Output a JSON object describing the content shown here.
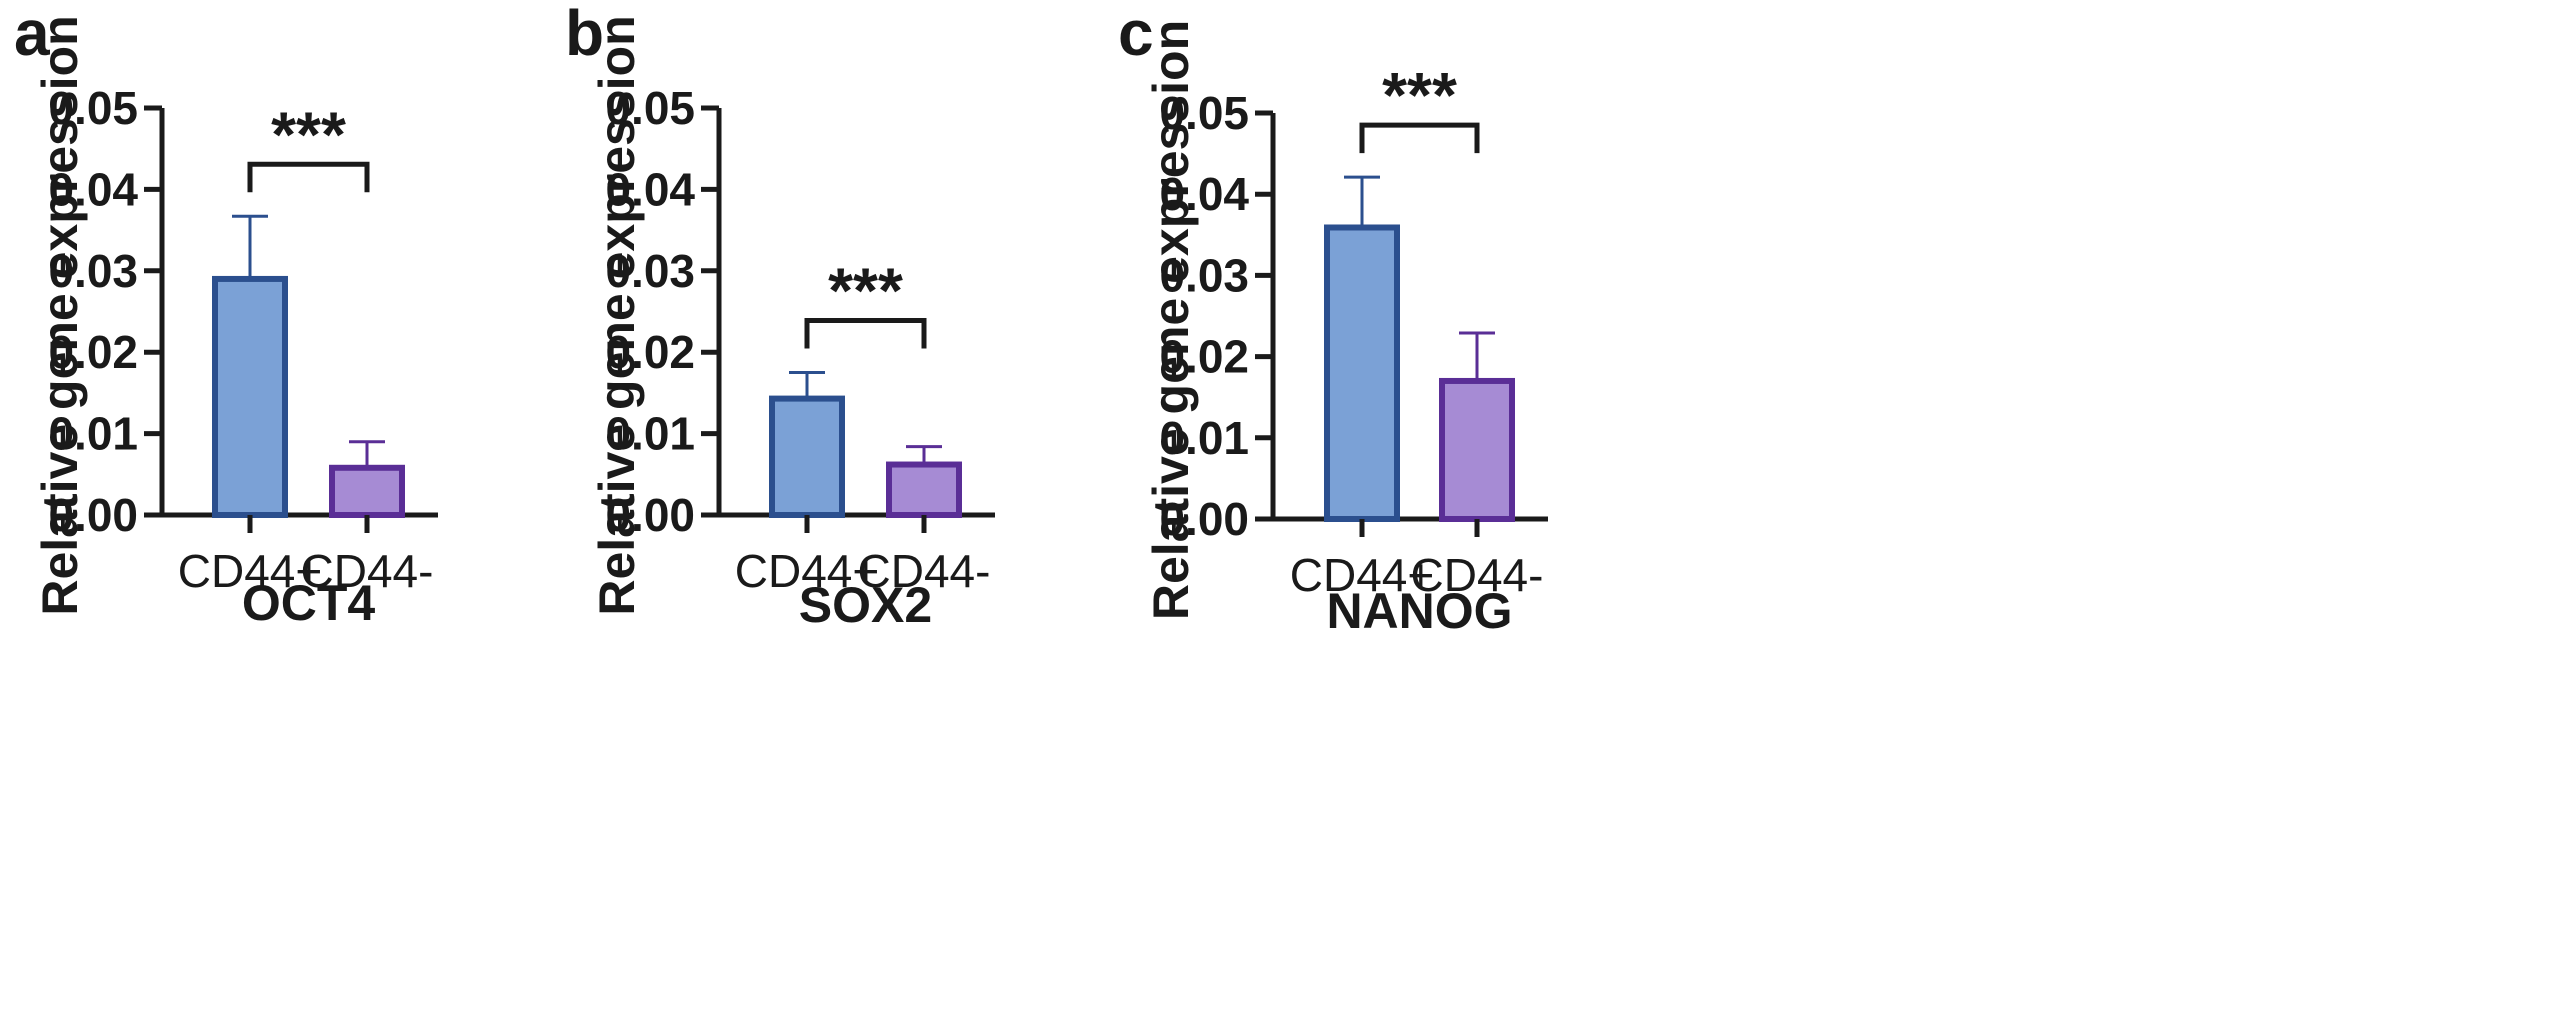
{
  "figure": {
    "panels": [
      "a",
      "b",
      "c"
    ]
  },
  "chart_data": [
    {
      "panel": "a",
      "type": "bar",
      "categories": [
        "CD44+",
        "CD44-"
      ],
      "values": [
        0.029,
        0.0058
      ],
      "errors": [
        0.0077,
        0.0032
      ],
      "xlabel": "OCT4",
      "ylabel": "Relative gene expression",
      "ylim": [
        0,
        0.05
      ],
      "yticks": [
        "0.00",
        "0.01",
        "0.02",
        "0.03",
        "0.04",
        "0.05"
      ],
      "significance": "***",
      "bar_fill_colors": [
        "#7BA1D6",
        "#A68BD4"
      ],
      "bar_edge_colors": [
        "#2B4F8E",
        "#5A2E96"
      ],
      "grid": false
    },
    {
      "panel": "b",
      "type": "bar",
      "categories": [
        "CD44+",
        "CD44-"
      ],
      "values": [
        0.0143,
        0.0062
      ],
      "errors": [
        0.0032,
        0.0022
      ],
      "xlabel": "SOX2",
      "ylabel": "Relative gene expression",
      "ylim": [
        0,
        0.05
      ],
      "yticks": [
        "0.00",
        "0.01",
        "0.02",
        "0.03",
        "0.04",
        "0.05"
      ],
      "significance": "***",
      "bar_fill_colors": [
        "#7BA1D6",
        "#A68BD4"
      ],
      "bar_edge_colors": [
        "#2B4F8E",
        "#5A2E96"
      ],
      "grid": false
    },
    {
      "panel": "c",
      "type": "bar",
      "categories": [
        "CD44+",
        "CD44-"
      ],
      "values": [
        0.0359,
        0.017
      ],
      "errors": [
        0.0062,
        0.0059
      ],
      "xlabel": "NANOG",
      "ylabel": "Relative gene expression",
      "ylim": [
        0,
        0.05
      ],
      "yticks": [
        "0.00",
        "0.01",
        "0.02",
        "0.03",
        "0.04",
        "0.05"
      ],
      "significance": "***",
      "bar_fill_colors": [
        "#7BA1D6",
        "#A68BD4"
      ],
      "bar_edge_colors": [
        "#2B4F8E",
        "#5A2E96"
      ],
      "grid": false
    }
  ]
}
